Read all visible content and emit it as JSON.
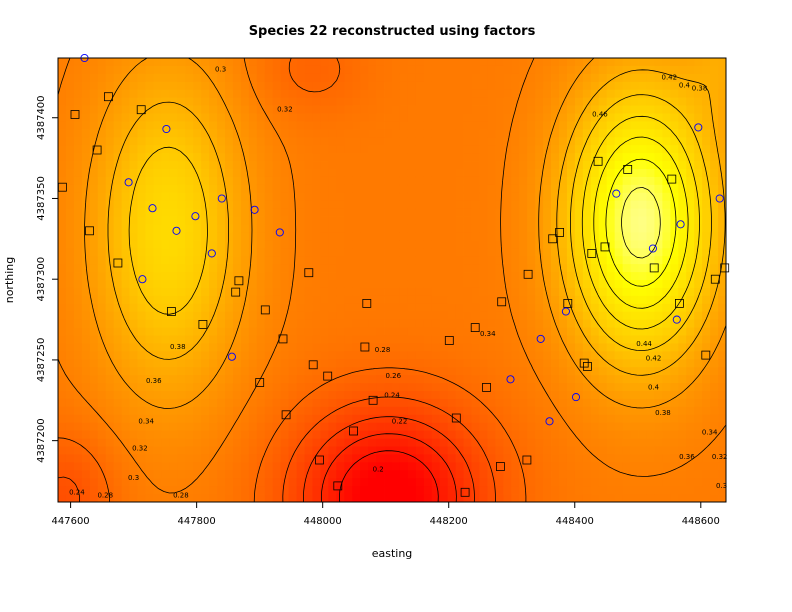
{
  "chart_data": {
    "type": "heatmap",
    "title": "Species 22 reconstructed using factors",
    "xlabel": "easting",
    "ylabel": "northing",
    "xlim": [
      447580,
      448640
    ],
    "ylim": [
      4387162,
      4387437
    ],
    "x_ticks": [
      447600,
      447800,
      448000,
      448200,
      448400,
      448600
    ],
    "y_ticks": [
      4387200,
      4387250,
      4387300,
      4387350,
      4387400
    ],
    "value_range": [
      0.2,
      0.5
    ],
    "contour_levels": [
      0.22,
      0.24,
      0.26,
      0.28,
      0.3,
      0.32,
      0.34,
      0.36,
      0.38,
      0.4,
      0.42,
      0.44,
      0.46
    ],
    "contour_labels": [
      {
        "text": "0.3",
        "x": 447700,
        "y": 4387177
      },
      {
        "text": "0.32",
        "x": 447710,
        "y": 4387195
      },
      {
        "text": "0.34",
        "x": 447720,
        "y": 4387212
      },
      {
        "text": "0.36",
        "x": 447732,
        "y": 4387237
      },
      {
        "text": "0.38",
        "x": 447770,
        "y": 4387258
      },
      {
        "text": "0.28",
        "x": 447655,
        "y": 4387166
      },
      {
        "text": "0.28",
        "x": 447775,
        "y": 4387166
      },
      {
        "text": "0.24",
        "x": 447610,
        "y": 4387168
      },
      {
        "text": "0.3",
        "x": 447838,
        "y": 4387430
      },
      {
        "text": "0.32",
        "x": 447940,
        "y": 4387405
      },
      {
        "text": "0.28",
        "x": 448095,
        "y": 4387256
      },
      {
        "text": "0.26",
        "x": 448112,
        "y": 4387240
      },
      {
        "text": "0.24",
        "x": 448110,
        "y": 4387228
      },
      {
        "text": "0.22",
        "x": 448122,
        "y": 4387212
      },
      {
        "text": "0.2",
        "x": 448088,
        "y": 4387182
      },
      {
        "text": "0.34",
        "x": 448262,
        "y": 4387266
      },
      {
        "text": "0.36",
        "x": 448578,
        "y": 4387190
      },
      {
        "text": "0.38",
        "x": 448540,
        "y": 4387217
      },
      {
        "text": "0.4",
        "x": 448525,
        "y": 4387233
      },
      {
        "text": "0.42",
        "x": 448525,
        "y": 4387251
      },
      {
        "text": "0.44",
        "x": 448510,
        "y": 4387260
      },
      {
        "text": "0.46",
        "x": 448440,
        "y": 4387402
      },
      {
        "text": "0.42",
        "x": 448550,
        "y": 4387425
      },
      {
        "text": "0.4",
        "x": 448574,
        "y": 4387420
      },
      {
        "text": "0.38",
        "x": 448598,
        "y": 4387418
      },
      {
        "text": "0.34",
        "x": 448614,
        "y": 4387205
      },
      {
        "text": "0.32",
        "x": 448630,
        "y": 4387190
      },
      {
        "text": "0.3",
        "x": 448633,
        "y": 4387172
      }
    ],
    "squares": [
      [
        447587,
        4387357
      ],
      [
        447607,
        4387402
      ],
      [
        447630,
        4387330
      ],
      [
        447642,
        4387380
      ],
      [
        447660,
        4387413
      ],
      [
        447675,
        4387310
      ],
      [
        447712,
        4387405
      ],
      [
        447760,
        4387280
      ],
      [
        447810,
        4387272
      ],
      [
        447862,
        4387292
      ],
      [
        447867,
        4387299
      ],
      [
        447900,
        4387236
      ],
      [
        447909,
        4387281
      ],
      [
        447937,
        4387263
      ],
      [
        447942,
        4387216
      ],
      [
        447978,
        4387304
      ],
      [
        447985,
        4387247
      ],
      [
        447995,
        4387188
      ],
      [
        448008,
        4387240
      ],
      [
        448024,
        4387172
      ],
      [
        448049,
        4387206
      ],
      [
        448067,
        4387258
      ],
      [
        448070,
        4387285
      ],
      [
        448080,
        4387225
      ],
      [
        448201,
        4387262
      ],
      [
        448212,
        4387214
      ],
      [
        448226,
        4387168
      ],
      [
        448242,
        4387270
      ],
      [
        448260,
        4387233
      ],
      [
        448282,
        4387184
      ],
      [
        448284,
        4387286
      ],
      [
        448324,
        4387188
      ],
      [
        448326,
        4387303
      ],
      [
        448365,
        4387325
      ],
      [
        448376,
        4387329
      ],
      [
        448389,
        4387285
      ],
      [
        448415,
        4387248
      ],
      [
        448420,
        4387246
      ],
      [
        448427,
        4387316
      ],
      [
        448437,
        4387373
      ],
      [
        448484,
        4387368
      ],
      [
        448526,
        4387307
      ],
      [
        448554,
        4387362
      ],
      [
        448566,
        4387285
      ],
      [
        448638,
        4387307
      ],
      [
        448623,
        4387300
      ],
      [
        448608,
        4387253
      ],
      [
        448448,
        4387320
      ]
    ],
    "circles": [
      [
        447622,
        4387437
      ],
      [
        447692,
        4387360
      ],
      [
        447714,
        4387300
      ],
      [
        447730,
        4387344
      ],
      [
        447752,
        4387393
      ],
      [
        447768,
        4387330
      ],
      [
        447798,
        4387339
      ],
      [
        447824,
        4387316
      ],
      [
        447840,
        4387350
      ],
      [
        447856,
        4387252
      ],
      [
        447892,
        4387343
      ],
      [
        447932,
        4387329
      ],
      [
        448298,
        4387238
      ],
      [
        448346,
        4387263
      ],
      [
        448360,
        4387212
      ],
      [
        448386,
        4387280
      ],
      [
        448402,
        4387227
      ],
      [
        448466,
        4387353
      ],
      [
        448524,
        4387319
      ],
      [
        448568,
        4387334
      ],
      [
        448596,
        4387394
      ],
      [
        448630,
        4387350
      ],
      [
        448562,
        4387275
      ]
    ]
  }
}
